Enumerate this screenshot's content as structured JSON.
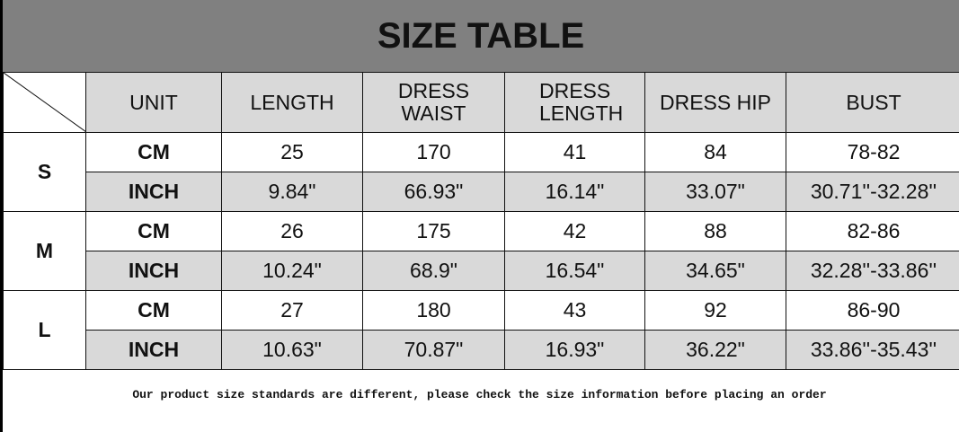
{
  "title": "SIZE TABLE",
  "headers": [
    "UNIT",
    "LENGTH",
    "DRESS WAIST",
    "DRESS LENGTH",
    "DRESS HIP",
    "BUST"
  ],
  "sizes": [
    {
      "size": "S",
      "rows": [
        [
          "CM",
          "25",
          "170",
          "41",
          "84",
          "78-82"
        ],
        [
          "INCH",
          "9.84\"",
          "66.93\"",
          "16.14\"",
          "33.07\"",
          "30.71''-32.28''"
        ]
      ]
    },
    {
      "size": "M",
      "rows": [
        [
          "CM",
          "26",
          "175",
          "42",
          "88",
          "82-86"
        ],
        [
          "INCH",
          "10.24\"",
          "68.9\"",
          "16.54\"",
          "34.65\"",
          "32.28''-33.86''"
        ]
      ]
    },
    {
      "size": "L",
      "rows": [
        [
          "CM",
          "27",
          "180",
          "43",
          "92",
          "86-90"
        ],
        [
          "INCH",
          "10.63\"",
          "70.87\"",
          "16.93\"",
          "36.22\"",
          "33.86''-35.43''"
        ]
      ]
    }
  ],
  "note": "Our product size standards are different, please check the size information before placing an order",
  "colors": {
    "title_band": "#808080",
    "cell_gray": "#d9d9d9"
  }
}
